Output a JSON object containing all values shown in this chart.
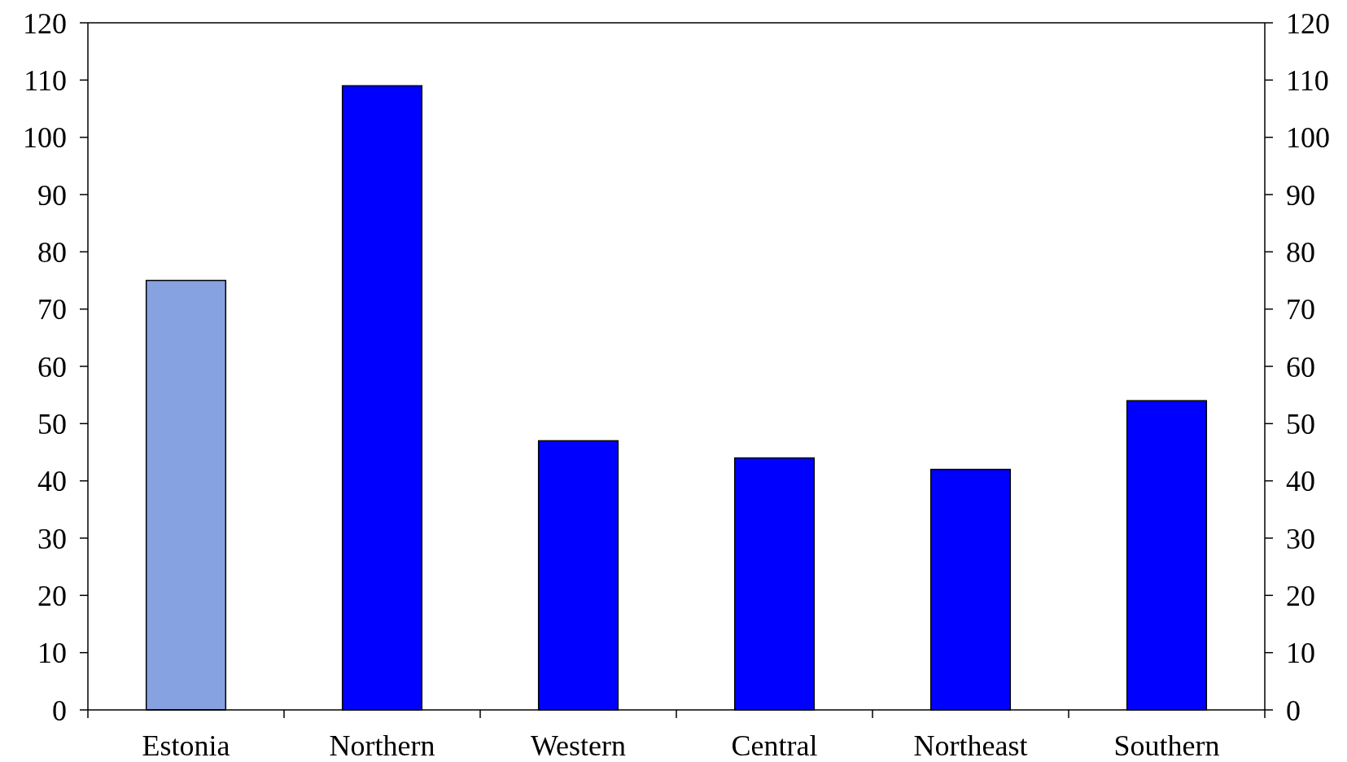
{
  "chart_data": {
    "type": "bar",
    "categories": [
      "Estonia",
      "Northern",
      "Western",
      "Central",
      "Northeast",
      "Southern"
    ],
    "values": [
      75,
      109,
      47,
      44,
      42,
      54
    ],
    "colors": [
      "#86a2e0",
      "#0000ff",
      "#0000ff",
      "#0000ff",
      "#0000ff",
      "#0000ff"
    ],
    "ylim": [
      0,
      120
    ],
    "yticks": [
      0,
      10,
      20,
      30,
      40,
      50,
      60,
      70,
      80,
      90,
      100,
      110,
      120
    ],
    "y2lim": [
      0,
      120
    ],
    "y2ticks": [
      0,
      10,
      20,
      30,
      40,
      50,
      60,
      70,
      80,
      90,
      100,
      110,
      120
    ],
    "grid": false
  }
}
